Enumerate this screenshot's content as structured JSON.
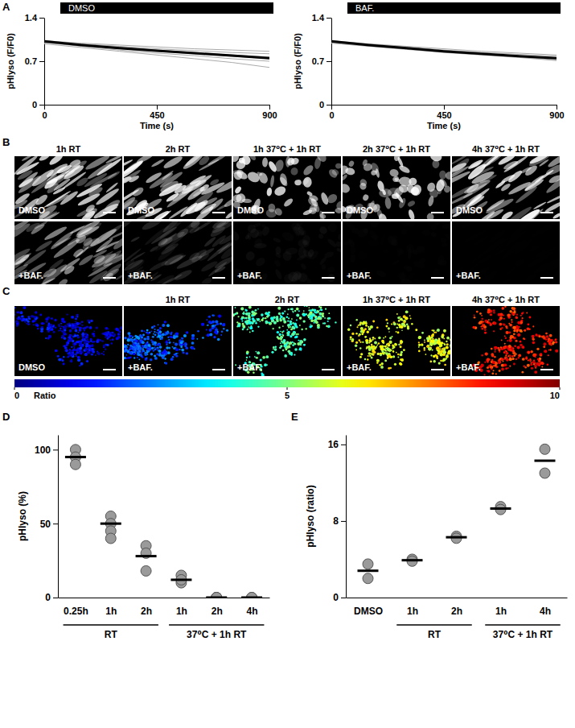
{
  "panel_labels": [
    "A",
    "B",
    "C",
    "D",
    "E"
  ],
  "chart_data": [
    {
      "type": "line",
      "title": "DMSO",
      "x_label": "Time (s)",
      "y_label": "pHlyso (F/F0)",
      "x": [
        0,
        150,
        300,
        450,
        600,
        750,
        900
      ],
      "xlim": [
        0,
        900
      ],
      "xticks": [
        0,
        450,
        900
      ],
      "ylim": [
        0,
        1.4
      ],
      "yticks": [
        0,
        0.7,
        1.4
      ],
      "series": [
        {
          "color": "#aaaaaa",
          "line_style": "thin",
          "values": [
            1.0,
            0.95,
            0.9,
            0.86,
            0.82,
            0.78,
            0.74
          ]
        },
        {
          "color": "#aaaaaa",
          "line_style": "thin",
          "values": [
            1.02,
            0.98,
            0.94,
            0.9,
            0.87,
            0.84,
            0.82
          ]
        },
        {
          "color": "#aaaaaa",
          "line_style": "thin",
          "values": [
            0.98,
            0.92,
            0.86,
            0.8,
            0.74,
            0.68,
            0.6
          ]
        },
        {
          "color": "#aaaaaa",
          "line_style": "thin",
          "values": [
            1.03,
            0.99,
            0.96,
            0.93,
            0.9,
            0.88,
            0.86
          ]
        },
        {
          "color": "#aaaaaa",
          "line_style": "thin",
          "values": [
            1.0,
            0.94,
            0.88,
            0.83,
            0.79,
            0.74,
            0.7
          ]
        },
        {
          "color": "#aaaaaa",
          "line_style": "thin",
          "values": [
            1.01,
            0.97,
            0.93,
            0.88,
            0.84,
            0.8,
            0.77
          ]
        },
        {
          "color": "#000000",
          "line_style": "thick",
          "values": [
            1.02,
            0.96,
            0.91,
            0.87,
            0.83,
            0.79,
            0.75
          ]
        }
      ]
    },
    {
      "type": "line",
      "title": "BAF.",
      "x_label": "Time (s)",
      "y_label": "pHlyso (F/F0)",
      "x": [
        0,
        150,
        300,
        450,
        600,
        750,
        900
      ],
      "xlim": [
        0,
        900
      ],
      "xticks": [
        0,
        450,
        900
      ],
      "ylim": [
        0,
        1.4
      ],
      "yticks": [
        0,
        0.7,
        1.4
      ],
      "series": [
        {
          "color": "#aaaaaa",
          "line_style": "thin",
          "values": [
            1.0,
            0.95,
            0.9,
            0.85,
            0.81,
            0.77,
            0.72
          ]
        },
        {
          "color": "#aaaaaa",
          "line_style": "thin",
          "values": [
            1.02,
            0.97,
            0.93,
            0.88,
            0.84,
            0.81,
            0.78
          ]
        },
        {
          "color": "#aaaaaa",
          "line_style": "thin",
          "values": [
            1.01,
            0.96,
            0.91,
            0.86,
            0.82,
            0.78,
            0.74
          ]
        },
        {
          "color": "#aaaaaa",
          "line_style": "thin",
          "values": [
            1.03,
            0.98,
            0.94,
            0.9,
            0.86,
            0.83,
            0.8
          ]
        },
        {
          "color": "#aaaaaa",
          "line_style": "thin",
          "values": [
            0.99,
            0.94,
            0.89,
            0.84,
            0.8,
            0.76,
            0.71
          ]
        },
        {
          "color": "#000000",
          "line_style": "thick",
          "values": [
            1.02,
            0.96,
            0.91,
            0.86,
            0.82,
            0.78,
            0.75
          ]
        }
      ]
    },
    {
      "type": "dot",
      "y_label": "pHlyso (%)",
      "categories": [
        "0.25h",
        "1h",
        "2h",
        "1h",
        "2h",
        "4h"
      ],
      "groups": [
        {
          "label": "RT",
          "start": 0,
          "size": 3
        },
        {
          "label": "37⁰C + 1h RT",
          "start": 3,
          "size": 3
        }
      ],
      "values": [
        95,
        50,
        28,
        12,
        0,
        0
      ],
      "points": [
        [
          100,
          95,
          90
        ],
        [
          55,
          50,
          45,
          40
        ],
        [
          35,
          30,
          18
        ],
        [
          15,
          10,
          12
        ],
        [
          0,
          0,
          0
        ],
        [
          0,
          0
        ]
      ],
      "ylim": [
        0,
        110
      ],
      "yticks": [
        0,
        50,
        100
      ]
    },
    {
      "type": "dot",
      "y_label": "pHlyso (ratio)",
      "categories": [
        "DMSO",
        "1h",
        "2h",
        "1h",
        "4h"
      ],
      "groups": [
        {
          "label": "RT",
          "start": 1,
          "size": 2
        },
        {
          "label": "37⁰C + 1h RT",
          "start": 3,
          "size": 2
        }
      ],
      "values": [
        2.8,
        3.9,
        6.3,
        9.3,
        14.3
      ],
      "points": [
        [
          3.5,
          2.0
        ],
        [
          4.0,
          3.8
        ],
        [
          6.4,
          6.2
        ],
        [
          9.5,
          9.2
        ],
        [
          15.5,
          13.0
        ]
      ],
      "ylim": [
        0,
        17
      ],
      "yticks": [
        0,
        8,
        16
      ]
    }
  ],
  "images_b": {
    "columns": [
      "1h RT",
      "2h RT",
      "1h 37⁰C + 1h RT",
      "2h 37⁰C + 1h RT",
      "4h 37⁰C + 1h RT"
    ],
    "rows": [
      "DMSO",
      "+BAF."
    ]
  },
  "images_c": {
    "columns": [
      null,
      "1h RT",
      "2h RT",
      "1h 37⁰C + 1h RT",
      "4h 37⁰C + 1h RT"
    ],
    "labels": [
      "DMSO",
      "+BAF.",
      "+BAF.",
      "+BAF.",
      "+BAF."
    ],
    "ratio": [
      1,
      2,
      4.5,
      6,
      8.5
    ],
    "colorbar": {
      "range": [
        0,
        10
      ],
      "ticks": [
        0,
        5,
        10
      ],
      "label": "Ratio"
    }
  }
}
